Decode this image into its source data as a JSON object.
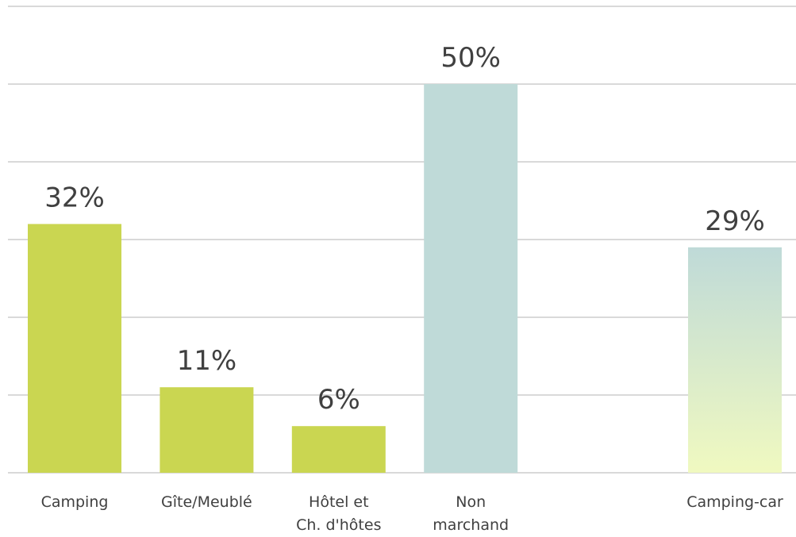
{
  "chart_data": {
    "type": "bar",
    "categories": [
      "Camping",
      "Gîte/Meublé",
      "Hôtel et\nCh. d'hôtes",
      "Non\nmarchand",
      null,
      "Camping-car"
    ],
    "values": [
      32,
      11,
      6,
      50,
      null,
      29
    ],
    "value_labels": [
      "32%",
      "11%",
      "6%",
      "50%",
      null,
      "29%"
    ],
    "colors": [
      "#cad651",
      "#cad651",
      "#cad651",
      "#bfdad8",
      null,
      [
        "#bfdad8",
        "#f0f9c0"
      ]
    ],
    "ylim": [
      0,
      60
    ],
    "yticks": [
      0,
      10,
      20,
      30,
      40,
      50,
      60
    ],
    "grid": true
  }
}
